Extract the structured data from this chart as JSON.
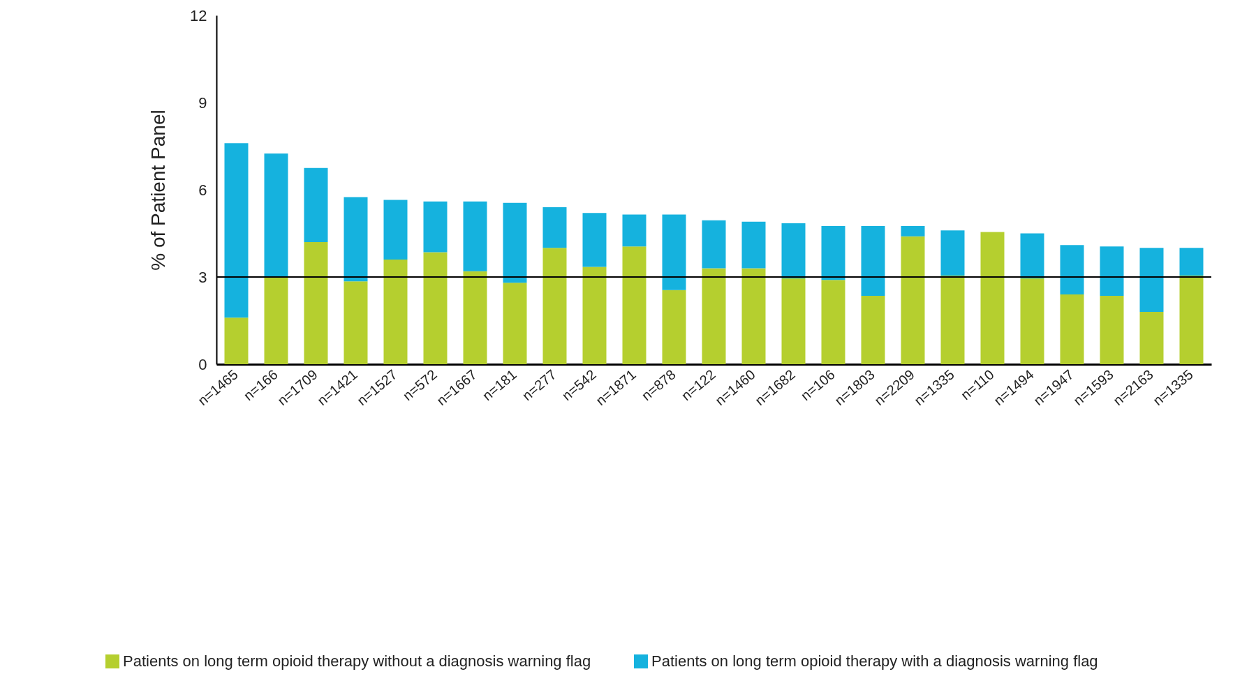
{
  "chart_data": {
    "type": "bar",
    "stacked": true,
    "ylabel": "% of Patient Panel",
    "categories": [
      "n=1465",
      "n=166",
      "n=1709",
      "n=1421",
      "n=1527",
      "n=572",
      "n=1667",
      "n=181",
      "n=277",
      "n=542",
      "n=1871",
      "n=878",
      "n=122",
      "n=1460",
      "n=1682",
      "n=106",
      "n=1803",
      "n=2209",
      "n=1335",
      "n=110",
      "n=1494",
      "n=1947",
      "n=1593",
      "n=2163",
      "n=1335"
    ],
    "series": [
      {
        "name": "Patients on long term opioid therapy without a diagnosis warning flag",
        "color": "#b5cf2f",
        "values": [
          1.6,
          3.0,
          4.2,
          2.85,
          3.6,
          3.85,
          3.2,
          2.8,
          4.0,
          3.35,
          4.05,
          2.55,
          3.3,
          3.3,
          2.95,
          2.9,
          2.35,
          4.4,
          3.05,
          4.55,
          2.95,
          2.4,
          2.35,
          1.8,
          3.05
        ]
      },
      {
        "name": "Patients on long term opioid therapy with a diagnosis warning flag",
        "color": "#15b2de",
        "values": [
          6.0,
          4.25,
          2.55,
          2.9,
          2.05,
          1.75,
          2.4,
          2.75,
          1.4,
          1.85,
          1.1,
          2.6,
          1.65,
          1.6,
          1.9,
          1.85,
          2.4,
          0.35,
          1.55,
          0,
          1.55,
          1.7,
          1.7,
          2.2,
          0.95
        ]
      }
    ],
    "ylim": [
      0,
      12
    ],
    "yticks": [
      0,
      3,
      6,
      9,
      12
    ],
    "grid": false,
    "legend": "bottom",
    "ref_lines": [
      {
        "axis": "y",
        "value": 3,
        "color": "#000000"
      }
    ]
  }
}
